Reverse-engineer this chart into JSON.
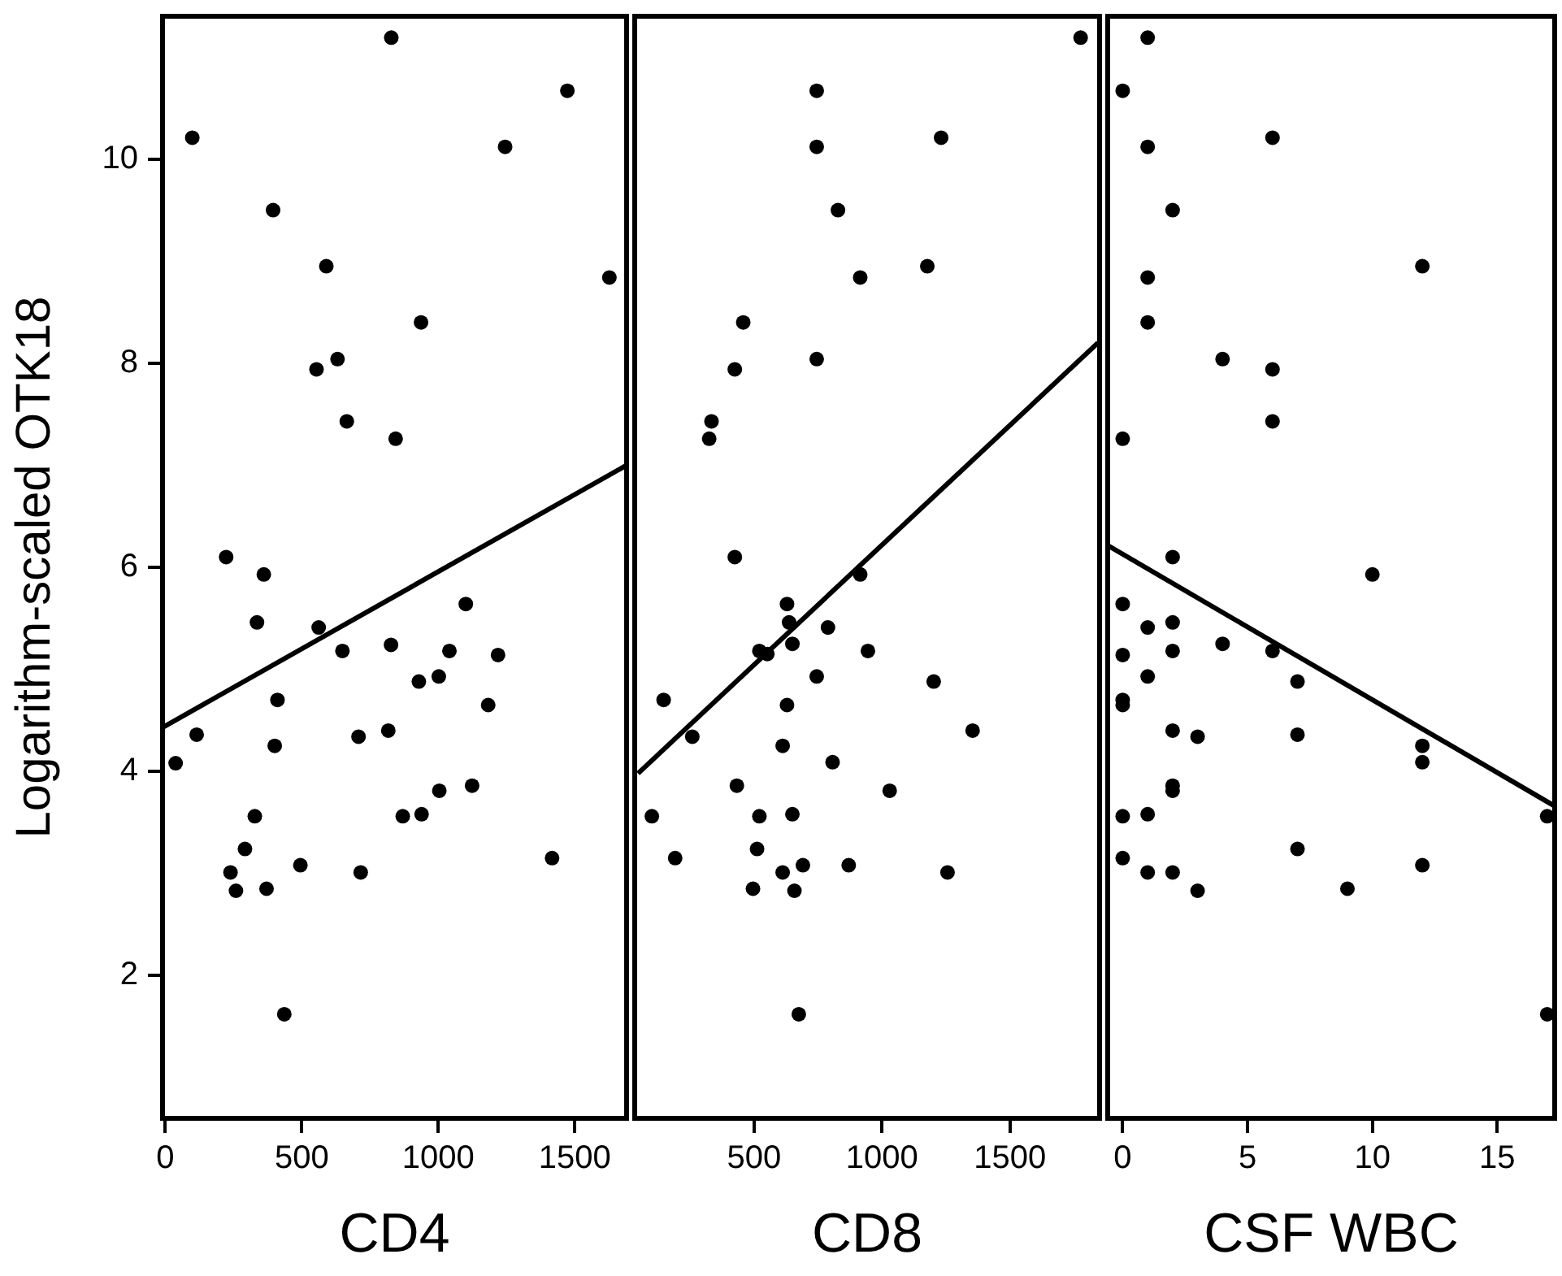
{
  "chart_data": [
    {
      "type": "scatter",
      "xlabel": "CD4",
      "ylabel": "Logarithm-scaled OTK18",
      "xlim": [
        -10,
        1690
      ],
      "xticks": [
        0,
        500,
        1000,
        1500
      ],
      "ylim": [
        0.6,
        11.4
      ],
      "yticks": [
        2,
        4,
        6,
        8,
        10
      ],
      "series": [
        {
          "type": "scatter",
          "marker": "circle",
          "color": "#000000",
          "x": [
            828,
            1473,
            99,
            1245,
            395,
            590,
            1627,
            937,
            554,
            631,
            665,
            844,
            223,
            361,
            336,
            562,
            649,
            827,
            1041,
            1101,
            1219,
            929,
            1002,
            1183,
            411,
            115,
            38,
            401,
            708,
            817,
            1004,
            1124,
            870,
            939,
            328,
            292,
            239,
            259,
            371,
            495,
            716,
            1417,
            436
          ],
          "values": [
            11.19,
            10.67,
            10.21,
            10.12,
            9.5,
            8.95,
            8.84,
            8.4,
            7.94,
            8.04,
            7.43,
            7.26,
            6.1,
            5.93,
            5.46,
            5.41,
            5.18,
            5.24,
            5.18,
            5.64,
            5.14,
            4.88,
            4.93,
            4.65,
            4.7,
            4.36,
            4.08,
            4.25,
            4.34,
            4.4,
            3.81,
            3.86,
            3.56,
            3.58,
            3.56,
            3.24,
            3.01,
            2.83,
            2.85,
            3.08,
            3.01,
            3.15,
            1.62
          ]
        },
        {
          "type": "line",
          "color": "#000000",
          "x": [
            -10,
            1690
          ],
          "values": [
            4.43,
            7.0
          ]
        }
      ]
    },
    {
      "type": "scatter",
      "xlabel": "CD8",
      "xlim": [
        34,
        1850
      ],
      "xticks": [
        500,
        1000,
        1500
      ],
      "ylim": [
        0.6,
        11.4
      ],
      "tick_labels": "x",
      "series": [
        {
          "type": "scatter",
          "marker": "circle",
          "color": "#000000",
          "x": [
            1776,
            745,
            745,
            1231,
            828,
            915,
            1177,
            458,
            425,
            745,
            334,
            325,
            425,
            915,
            629,
            637,
            789,
            521,
            552,
            650,
            945,
            745,
            1202,
            147,
            629,
            259,
            1354,
            612,
            807,
            433,
            1030,
            101,
            521,
            650,
            192,
            512,
            612,
            691,
            870,
            1256,
            496,
            658,
            675
          ],
          "values": [
            11.19,
            10.67,
            10.12,
            10.21,
            9.5,
            8.84,
            8.95,
            8.4,
            7.94,
            8.04,
            7.43,
            7.26,
            6.1,
            5.93,
            5.64,
            5.46,
            5.41,
            5.18,
            5.15,
            5.25,
            5.18,
            4.93,
            4.88,
            4.7,
            4.65,
            4.34,
            4.4,
            4.25,
            4.09,
            3.86,
            3.81,
            3.56,
            3.56,
            3.58,
            3.15,
            3.24,
            3.01,
            3.08,
            3.08,
            3.01,
            2.85,
            2.83,
            1.62
          ]
        },
        {
          "type": "line",
          "color": "#000000",
          "x": [
            47,
            1844
          ],
          "values": [
            3.98,
            8.2
          ]
        }
      ]
    },
    {
      "type": "scatter",
      "xlabel": "CSF WBC",
      "xlim": [
        -0.6,
        17.3
      ],
      "xticks": [
        0,
        5,
        10,
        15
      ],
      "ylim": [
        0.6,
        11.4
      ],
      "tick_labels": "x",
      "series": [
        {
          "type": "scatter",
          "marker": "circle",
          "color": "#000000",
          "x": [
            1,
            0,
            1,
            6,
            2,
            1,
            1,
            12,
            4,
            6,
            6,
            0,
            2,
            10,
            0,
            1,
            2,
            2,
            4,
            6,
            0,
            1,
            7,
            0,
            0,
            2,
            3,
            7,
            12,
            12,
            2,
            2,
            0,
            1,
            17,
            0,
            7,
            1,
            2,
            12,
            3,
            9,
            17
          ],
          "values": [
            11.19,
            10.67,
            10.12,
            10.21,
            9.5,
            8.84,
            8.4,
            8.95,
            8.04,
            7.94,
            7.43,
            7.26,
            6.1,
            5.93,
            5.64,
            5.41,
            5.46,
            5.18,
            5.25,
            5.18,
            5.14,
            4.93,
            4.88,
            4.7,
            4.65,
            4.4,
            4.34,
            4.36,
            4.25,
            4.09,
            3.86,
            3.81,
            3.56,
            3.58,
            3.56,
            3.15,
            3.24,
            3.01,
            3.01,
            3.08,
            2.83,
            2.85,
            1.62
          ]
        },
        {
          "type": "line",
          "color": "#000000",
          "x": [
            -0.57,
            17.3
          ],
          "values": [
            6.21,
            3.66
          ]
        }
      ]
    }
  ]
}
